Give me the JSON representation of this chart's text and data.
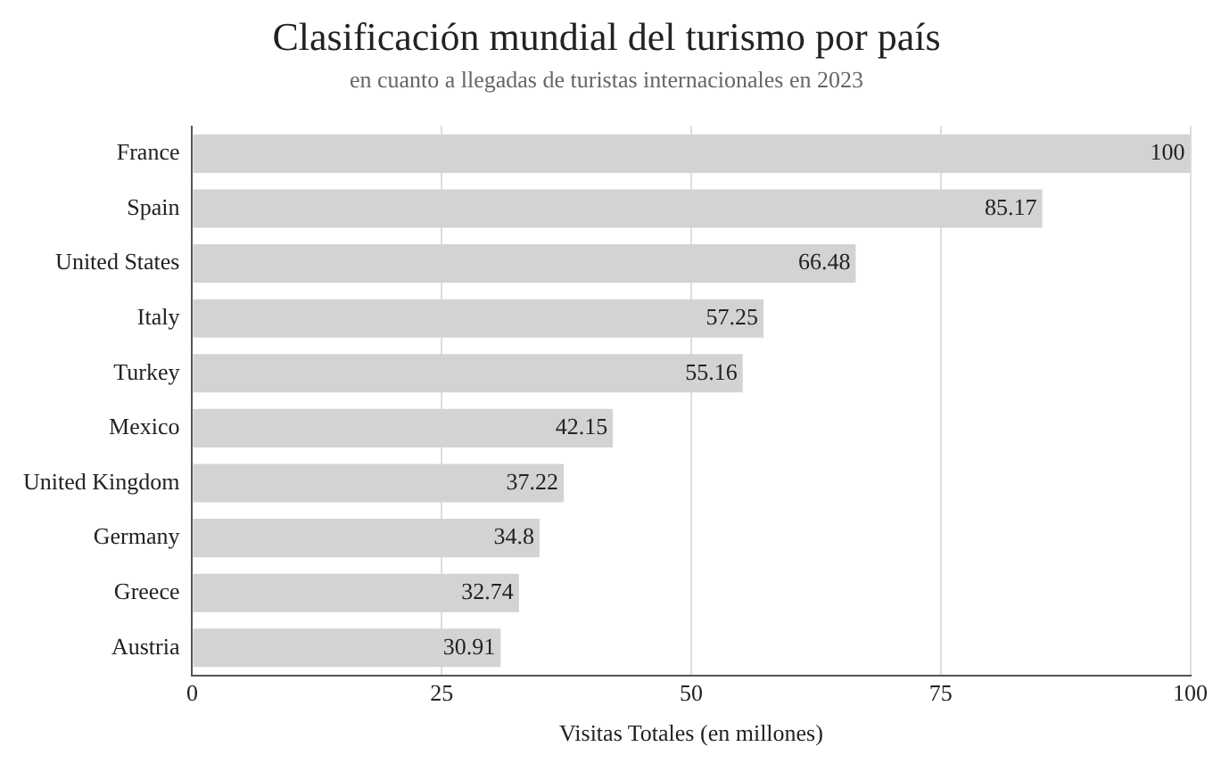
{
  "chart_data": {
    "type": "bar",
    "orientation": "horizontal",
    "title": "Clasificación mundial del turismo por país",
    "subtitle": "en cuanto a llegadas de turistas internacionales en 2023",
    "xlabel": "Visitas Totales (en millones)",
    "categories": [
      "France",
      "Spain",
      "United States",
      "Italy",
      "Turkey",
      "Mexico",
      "United Kingdom",
      "Germany",
      "Greece",
      "Austria"
    ],
    "values": [
      100,
      85.17,
      66.48,
      57.25,
      55.16,
      42.15,
      37.22,
      34.8,
      32.74,
      30.91
    ],
    "color": "#d3d3d3",
    "xlim": [
      0,
      100
    ],
    "xticks": [
      0,
      25,
      50,
      75,
      100
    ],
    "grid": "x",
    "legend": false,
    "data_labels": true
  }
}
